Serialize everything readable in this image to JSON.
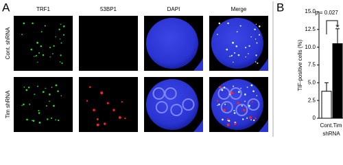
{
  "panel_a": {
    "label": "A",
    "columns": [
      "TRF1",
      "53BP1",
      "DAPI",
      "Merge"
    ],
    "rows": [
      "Cont. shRNA",
      "Tim shRNA"
    ]
  },
  "chart_data": {
    "type": "bar",
    "panel_label": "B",
    "y_label": "TIF-positive cells (%)",
    "x_label": "shRNA",
    "categories": [
      "Cont.",
      "Tim"
    ],
    "values": [
      3.8,
      10.5
    ],
    "errors": [
      1.2,
      2.1
    ],
    "colors": [
      "#ffffff",
      "#000000"
    ],
    "ylim": [
      0,
      15
    ],
    "yticks": [
      0,
      2.5,
      {
        "value": 5,
        "label": "5.0"
      },
      7.5,
      {
        "value": 10,
        "label": "10.0"
      },
      12.5,
      {
        "value": 15,
        "label": "15.0"
      }
    ],
    "annotations": [
      "p = 0.027",
      "*"
    ]
  }
}
